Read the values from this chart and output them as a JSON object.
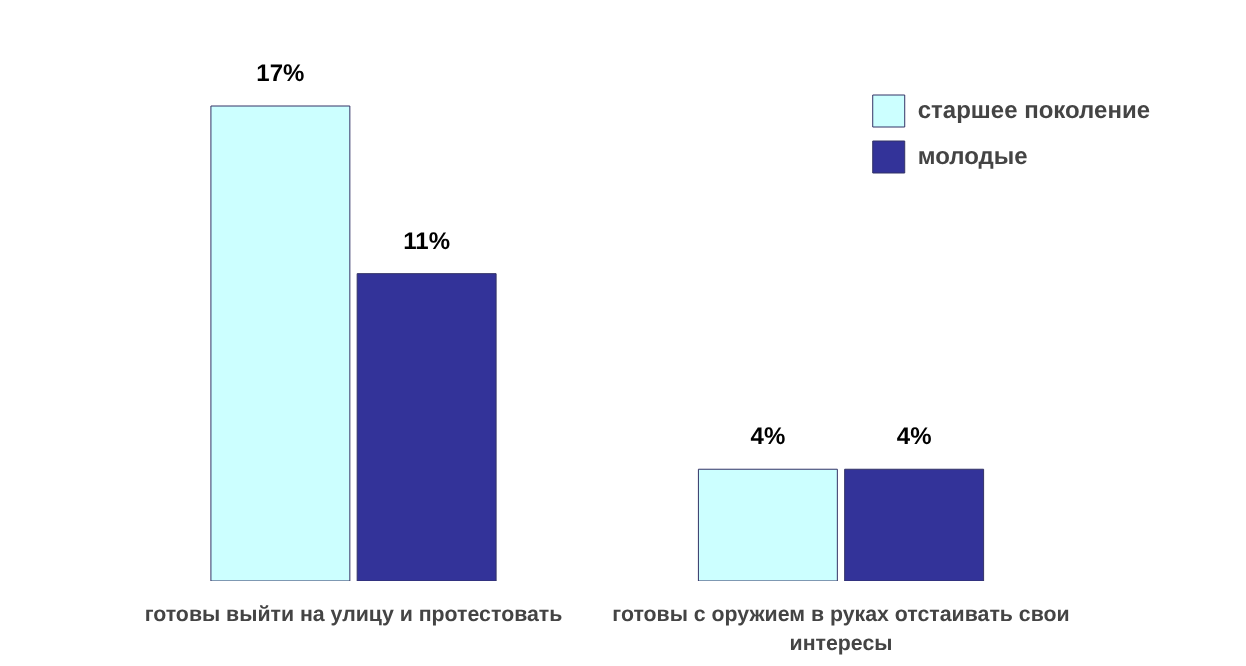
{
  "chart_data": {
    "type": "bar",
    "categories": [
      "готовы выйти на улицу и протестовать",
      "готовы с оружием в руках отстаивать свои интересы"
    ],
    "series": [
      {
        "name": "старшее поколение",
        "color": "#ccffff",
        "values": [
          17,
          4
        ],
        "value_labels": [
          "17%",
          "4%"
        ]
      },
      {
        "name": "молодые",
        "color": "#333399",
        "values": [
          11,
          4
        ],
        "value_labels": [
          "11%",
          "4%"
        ]
      }
    ],
    "legend": "right"
  }
}
